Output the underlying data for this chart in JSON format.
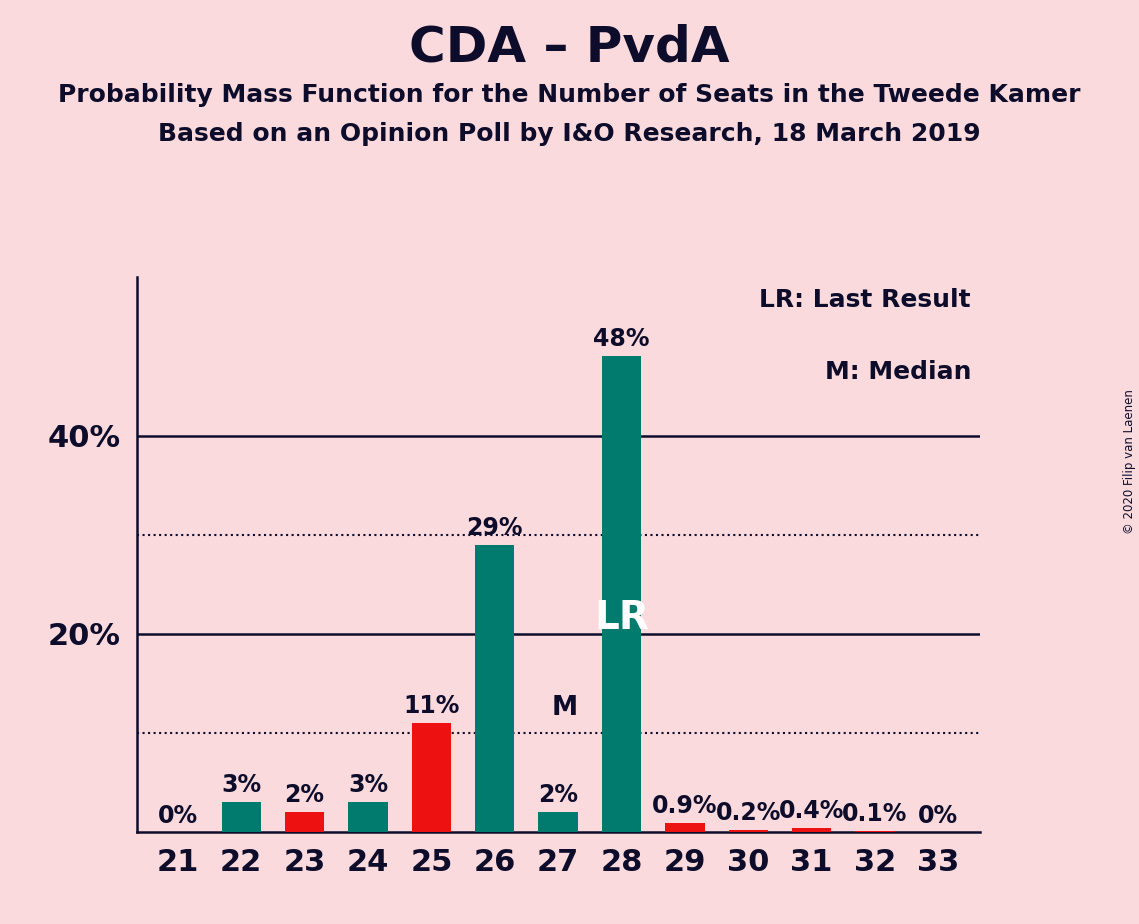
{
  "title": "CDA – PvdA",
  "subtitle1": "Probability Mass Function for the Number of Seats in the Tweede Kamer",
  "subtitle2": "Based on an Opinion Poll by I&O Research, 18 March 2019",
  "copyright": "© 2020 Filip van Laenen",
  "legend_line1": "LR: Last Result",
  "legend_line2": "M: Median",
  "categories": [
    21,
    22,
    23,
    24,
    25,
    26,
    27,
    28,
    29,
    30,
    31,
    32,
    33
  ],
  "green_values": [
    0.0,
    3.0,
    0.0,
    3.0,
    0.0,
    29.0,
    2.0,
    48.0,
    0.0,
    0.0,
    0.0,
    0.0,
    0.0
  ],
  "red_values": [
    0.0,
    0.0,
    2.0,
    0.0,
    11.0,
    0.0,
    0.0,
    0.0,
    0.9,
    0.2,
    0.4,
    0.1,
    0.0
  ],
  "labels": [
    "0%",
    "3%",
    "2%",
    "3%",
    "11%",
    "29%",
    "2%",
    "48%",
    "0.9%",
    "0.2%",
    "0.4%",
    "0.1%",
    "0%"
  ],
  "green_color": "#007B6E",
  "red_color": "#EE1111",
  "background_color": "#FADADD",
  "lr_seat": 28,
  "median_seat": 27,
  "ylim": [
    0,
    56
  ],
  "dotted_lines": [
    10.0,
    30.0
  ],
  "solid_lines": [
    20.0,
    40.0
  ],
  "title_fontsize": 36,
  "subtitle_fontsize": 18,
  "tick_fontsize": 22,
  "label_fontsize": 17,
  "legend_fontsize": 18,
  "bar_width": 0.62
}
